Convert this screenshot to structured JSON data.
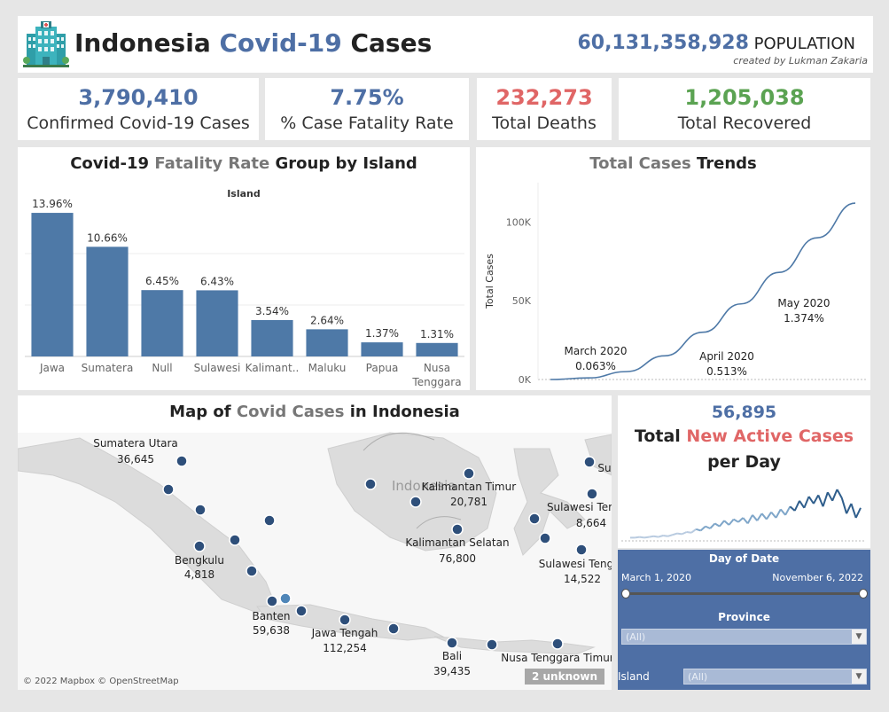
{
  "header": {
    "title_part1": "Indonesia ",
    "title_part2": "Covid-19",
    "title_part3": " Cases",
    "population_value": "60,131,358,928",
    "population_label": " POPULATION",
    "credit": "created by Lukman Zakaria"
  },
  "kpis": [
    {
      "value": "3,790,410",
      "label": "Confirmed Covid-19 Cases",
      "color": "#4e6fa5"
    },
    {
      "value": "7.75%",
      "label": "% Case Fatality Rate",
      "color": "#4e6fa5"
    },
    {
      "value": "232,273",
      "label": "Total Deaths",
      "color": "#e06666"
    },
    {
      "value": "1,205,038",
      "label": "Total Recovered",
      "color": "#5ba352"
    }
  ],
  "fatality_panel": {
    "title_part1": "Covid-19 ",
    "title_part2": "Fatality Rate",
    "title_part3": " Group by Island",
    "axis_title": "Island"
  },
  "trend_panel": {
    "title_part1": "Total Cases",
    "title_part2": " Trends",
    "ylabel": "Total Cases",
    "y_ticks": [
      "100K",
      "50K",
      "0K"
    ],
    "annotations": [
      {
        "label": "March 2020",
        "value": "0.063%"
      },
      {
        "label": "April 2020",
        "value": "0.513%"
      },
      {
        "label": "May 2020",
        "value": "1.374%"
      }
    ]
  },
  "map_panel": {
    "title_part1": "Map of ",
    "title_part2": "Covid Cases",
    "title_part3": " in Indonesia",
    "country_label": "Indonesia",
    "copyright": "© 2022 Mapbox © OpenStreetMap",
    "unknown_badge": "2 unknown",
    "labels": [
      {
        "name": "Sumatera Utara",
        "value": "36,645"
      },
      {
        "name": "Bengkulu",
        "value": "4,818"
      },
      {
        "name": "Banten",
        "value": "59,638"
      },
      {
        "name": "Jawa Tengah",
        "value": "112,254"
      },
      {
        "name": "Bali",
        "value": "39,435"
      },
      {
        "name": "Kalimantan Timur",
        "value": "20,781"
      },
      {
        "name": "Kalimantan Selatan",
        "value": "76,800"
      },
      {
        "name": "Sulawesi Ter",
        "value": "8,664"
      },
      {
        "name": "Sulawesi Teng",
        "value": "14,522"
      },
      {
        "name": "Nusa Tenggara Timur",
        "value": ""
      },
      {
        "name": "Su",
        "value": ""
      }
    ]
  },
  "active_panel": {
    "value": "56,895",
    "title_part1": "Total ",
    "title_part2": "New Active Cases",
    "title_part3": " per Day"
  },
  "filters": {
    "date_header": "Day of Date",
    "date_start": "March 1, 2020",
    "date_end": "November 6, 2022",
    "province_header": "Province",
    "province_value": "(All)",
    "island_label": "Island",
    "island_value": "(All)"
  },
  "chart_data": [
    {
      "type": "bar",
      "title": "Covid-19 Fatality Rate Group by Island",
      "xlabel": "Island",
      "categories": [
        "Jawa",
        "Sumatera",
        "Null",
        "Sulawesi",
        "Kalimant..",
        "Maluku",
        "Papua",
        "Nusa Tenggara"
      ],
      "values": [
        13.96,
        10.66,
        6.45,
        6.43,
        3.54,
        2.64,
        1.37,
        1.31
      ],
      "value_labels": [
        "13.96%",
        "10.66%",
        "6.45%",
        "6.43%",
        "3.54%",
        "2.64%",
        "1.37%",
        "1.31%"
      ],
      "color": "#4e79a7",
      "ylim": [
        0,
        15
      ]
    },
    {
      "type": "line",
      "title": "Total Cases Trends",
      "ylabel": "Total Cases",
      "ylim": [
        0,
        125000
      ],
      "yticks": [
        0,
        50000,
        100000
      ],
      "x": [
        "2020-03",
        "2020-04",
        "2020-05",
        "2020-06",
        "2020-07",
        "2020-08",
        "2020-09",
        "2020-10",
        "2020-11"
      ],
      "values": [
        0,
        1000,
        5000,
        15000,
        30000,
        48000,
        68000,
        90000,
        112000
      ],
      "color": "#4e79a7"
    },
    {
      "type": "line",
      "title": "Total New Active Cases per Day",
      "values": [
        2,
        2,
        3,
        2,
        3,
        4,
        3,
        5,
        4,
        6,
        8,
        7,
        10,
        9,
        14,
        12,
        18,
        15,
        22,
        18,
        26,
        20,
        28,
        24,
        30,
        22,
        34,
        26,
        36,
        28,
        38,
        30,
        42,
        34,
        46,
        40,
        54,
        44,
        60,
        50,
        62,
        46,
        66,
        54,
        70,
        58,
        36,
        50,
        30,
        44
      ]
    }
  ]
}
